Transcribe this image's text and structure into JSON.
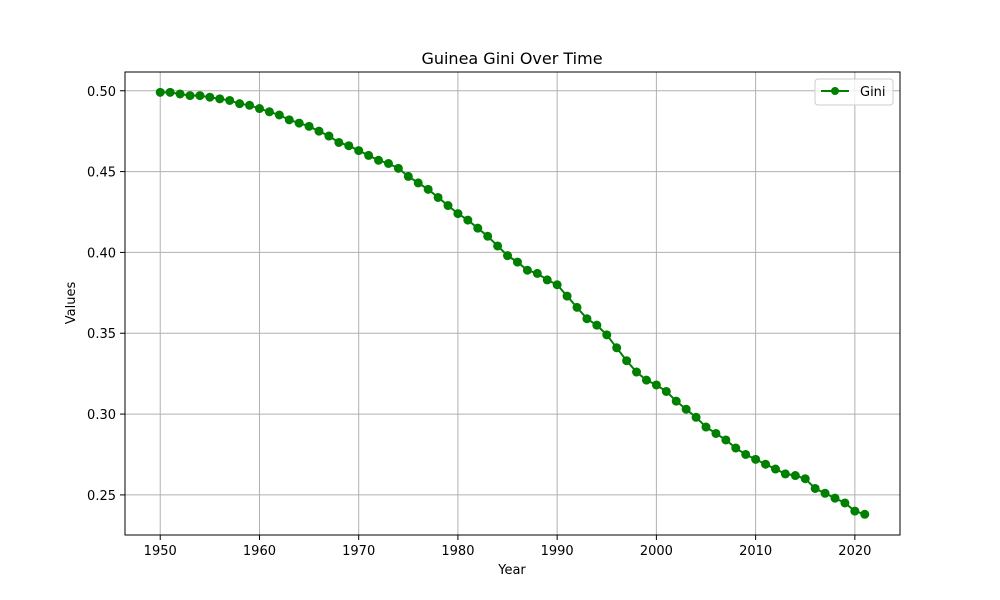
{
  "chart_data": {
    "type": "line",
    "title": "Guinea Gini Over Time",
    "xlabel": "Year",
    "ylabel": "Values",
    "xlim": [
      1946.45,
      2024.55
    ],
    "ylim": [
      0.2252,
      0.5116
    ],
    "xticks": [
      1950,
      1960,
      1970,
      1980,
      1990,
      2000,
      2010,
      2020
    ],
    "xtick_labels": [
      "1950",
      "1960",
      "1970",
      "1980",
      "1990",
      "2000",
      "2010",
      "2020"
    ],
    "yticks": [
      0.25,
      0.3,
      0.35,
      0.4,
      0.45,
      0.5
    ],
    "ytick_labels": [
      "0.25",
      "0.30",
      "0.35",
      "0.40",
      "0.45",
      "0.50"
    ],
    "grid": true,
    "legend_position": "top-right",
    "series": [
      {
        "name": "Gini",
        "color": "#008000",
        "marker": "circle",
        "x": [
          1950,
          1951,
          1952,
          1953,
          1954,
          1955,
          1956,
          1957,
          1958,
          1959,
          1960,
          1961,
          1962,
          1963,
          1964,
          1965,
          1966,
          1967,
          1968,
          1969,
          1970,
          1971,
          1972,
          1973,
          1974,
          1975,
          1976,
          1977,
          1978,
          1979,
          1980,
          1981,
          1982,
          1983,
          1984,
          1985,
          1986,
          1987,
          1988,
          1989,
          1990,
          1991,
          1992,
          1993,
          1994,
          1995,
          1996,
          1997,
          1998,
          1999,
          2000,
          2001,
          2002,
          2003,
          2004,
          2005,
          2006,
          2007,
          2008,
          2009,
          2010,
          2011,
          2012,
          2013,
          2014,
          2015,
          2016,
          2017,
          2018,
          2019,
          2020,
          2021
        ],
        "values": [
          0.499,
          0.499,
          0.498,
          0.497,
          0.497,
          0.496,
          0.495,
          0.494,
          0.492,
          0.491,
          0.489,
          0.487,
          0.485,
          0.482,
          0.48,
          0.478,
          0.475,
          0.472,
          0.468,
          0.466,
          0.463,
          0.46,
          0.457,
          0.455,
          0.452,
          0.447,
          0.443,
          0.439,
          0.434,
          0.429,
          0.424,
          0.42,
          0.415,
          0.41,
          0.404,
          0.398,
          0.394,
          0.389,
          0.387,
          0.383,
          0.38,
          0.373,
          0.366,
          0.359,
          0.355,
          0.349,
          0.341,
          0.333,
          0.326,
          0.321,
          0.318,
          0.314,
          0.308,
          0.303,
          0.298,
          0.292,
          0.288,
          0.284,
          0.279,
          0.275,
          0.272,
          0.269,
          0.266,
          0.263,
          0.262,
          0.26,
          0.254,
          0.251,
          0.248,
          0.245,
          0.24,
          0.238
        ]
      }
    ]
  }
}
